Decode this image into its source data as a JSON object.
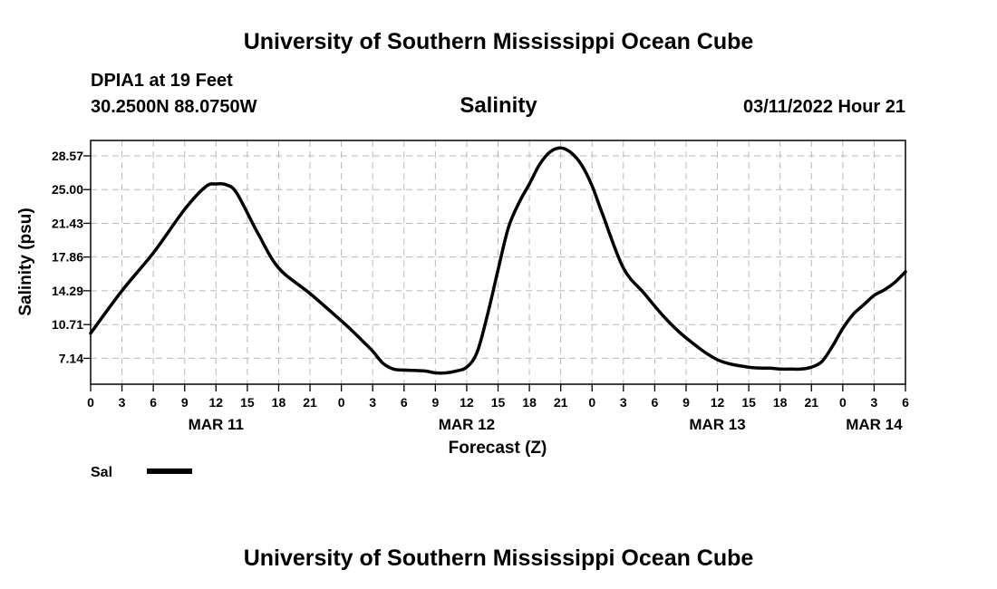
{
  "header": {
    "title_top": "University of Southern Mississippi Ocean Cube",
    "station": "DPIA1 at 19 Feet",
    "coords": "30.2500N  88.0750W",
    "chart_title": "Salinity",
    "date": "03/11/2022 Hour 21",
    "title_bottom": "University of Southern Mississippi Ocean Cube"
  },
  "legend": {
    "label": "Sal",
    "color": "#000000"
  },
  "chart_data": {
    "type": "line",
    "title": "Salinity",
    "xlabel": "Forecast (Z)",
    "ylabel": "Salinity (psu)",
    "xlim": [
      0,
      78
    ],
    "ylim": [
      4.4,
      30.2
    ],
    "yticks": [
      7.14,
      10.71,
      14.29,
      17.86,
      21.43,
      25.0,
      28.57
    ],
    "ytick_labels": [
      "7.14",
      "10.71",
      "14.29",
      "17.86",
      "21.43",
      "25.00",
      "28.57"
    ],
    "xtick_labels": [
      "0",
      "3",
      "6",
      "9",
      "12",
      "15",
      "18",
      "21",
      "0",
      "3",
      "6",
      "9",
      "12",
      "15",
      "18",
      "21",
      "0",
      "3",
      "6",
      "9",
      "12",
      "15",
      "18",
      "21",
      "0",
      "3",
      "6"
    ],
    "day_labels": [
      {
        "label": "MAR 11",
        "hour": 12
      },
      {
        "label": "MAR 12",
        "hour": 36
      },
      {
        "label": "MAR 13",
        "hour": 60
      },
      {
        "label": "MAR 14",
        "hour": 75
      }
    ],
    "grid": true,
    "legend_position": "bottom-left",
    "series": [
      {
        "name": "Sal",
        "color": "#000000",
        "x": [
          0,
          3,
          6,
          9,
          11,
          12,
          13,
          14,
          16,
          18,
          21,
          24,
          25,
          26,
          27,
          28,
          29,
          30,
          32,
          33,
          34,
          35,
          36,
          37,
          38,
          39,
          40,
          41,
          42,
          43,
          44,
          45,
          46,
          47,
          48,
          49,
          51,
          53,
          55,
          57,
          60,
          63,
          65,
          66,
          67,
          68,
          69,
          70,
          71,
          72,
          73,
          74,
          75,
          76,
          77,
          78
        ],
        "values": [
          9.8,
          14.3,
          18.3,
          22.9,
          25.3,
          25.6,
          25.5,
          24.6,
          20.4,
          16.7,
          14.0,
          11.1,
          10.1,
          9.0,
          7.9,
          6.6,
          6.0,
          5.9,
          5.8,
          5.6,
          5.6,
          5.8,
          6.2,
          7.8,
          11.8,
          16.5,
          21.0,
          23.6,
          25.6,
          27.7,
          29.0,
          29.4,
          28.9,
          27.6,
          25.4,
          22.4,
          16.7,
          14.0,
          11.4,
          9.3,
          7.0,
          6.2,
          6.1,
          6.0,
          6.0,
          6.0,
          6.2,
          6.8,
          8.4,
          10.3,
          11.8,
          12.8,
          13.8,
          14.4,
          15.2,
          16.3
        ]
      }
    ]
  }
}
